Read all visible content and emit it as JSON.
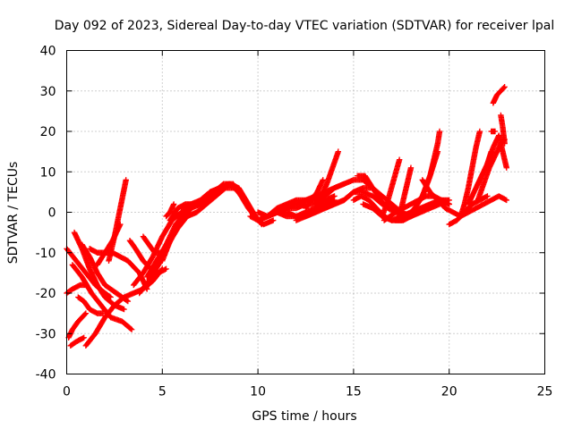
{
  "chart_data": {
    "type": "scatter",
    "title": "Day 092 of 2023, Sidereal Day-to-day VTEC variation (SDTVAR) for receiver lpal",
    "xlabel": "GPS time / hours",
    "ylabel": "SDTVAR / TECUs",
    "xlim": [
      0,
      25
    ],
    "ylim": [
      -40,
      40
    ],
    "xticks": [
      0,
      5,
      10,
      15,
      20,
      25
    ],
    "yticks": [
      -40,
      -30,
      -20,
      -10,
      0,
      10,
      20,
      30,
      40
    ],
    "xtick_labels": [
      "0",
      "5",
      "10",
      "15",
      "20",
      "25"
    ],
    "ytick_labels": [
      "-40",
      "-30",
      "-20",
      "-10",
      "0",
      "10",
      "20",
      "30",
      "40"
    ],
    "grid": true,
    "marker": "+",
    "color": "#ff0000",
    "series": [
      {
        "x": [
          0.0,
          0.5,
          1.0,
          1.5,
          2.0,
          2.3
        ],
        "y": [
          -9,
          -12,
          -15,
          -18,
          -20,
          -21
        ]
      },
      {
        "x": [
          0.3,
          0.8,
          1.3,
          1.8,
          2.3,
          2.9,
          3.4
        ],
        "y": [
          -13,
          -16,
          -20,
          -23,
          -26,
          -27,
          -29
        ]
      },
      {
        "x": [
          0.0,
          0.3,
          0.7,
          1.0
        ],
        "y": [
          -20,
          -19,
          -18,
          -18
        ]
      },
      {
        "x": [
          0.1,
          0.3,
          0.6,
          1.0
        ],
        "y": [
          -31,
          -29,
          -27,
          -25
        ]
      },
      {
        "x": [
          0.2,
          0.5,
          0.9
        ],
        "y": [
          -33,
          -32,
          -31
        ]
      },
      {
        "x": [
          0.6,
          0.9,
          1.2,
          1.6,
          1.9
        ],
        "y": [
          -21,
          -22,
          -24,
          -25,
          -25
        ]
      },
      {
        "x": [
          1.0,
          1.5,
          2.0,
          2.5,
          3.0,
          3.5,
          4.0,
          4.5,
          5.0
        ],
        "y": [
          -33,
          -30,
          -26,
          -23,
          -21,
          -20,
          -19,
          -17,
          -14
        ]
      },
      {
        "x": [
          0.4,
          0.8,
          1.2,
          1.6,
          2.0,
          2.5,
          3.0
        ],
        "y": [
          -5,
          -9,
          -14,
          -18,
          -21,
          -23,
          -24
        ]
      },
      {
        "x": [
          0.8,
          1.2,
          1.6,
          2.0,
          2.6,
          3.2
        ],
        "y": [
          -8,
          -11,
          -15,
          -18,
          -20,
          -22
        ]
      },
      {
        "x": [
          1.2,
          1.6,
          2.0,
          2.4,
          2.8,
          3.2,
          3.8,
          4.2
        ],
        "y": [
          -9,
          -10,
          -10,
          -10,
          -11,
          -12,
          -15,
          -19
        ]
      },
      {
        "x": [
          2.2,
          2.5,
          2.8,
          3.1
        ],
        "y": [
          -12,
          -6,
          1,
          8
        ]
      },
      {
        "x": [
          1.6,
          2.0,
          2.4,
          2.8
        ],
        "y": [
          -13,
          -10,
          -7,
          -3
        ]
      },
      {
        "x": [
          3.3,
          3.6,
          4.0,
          4.4,
          4.8,
          5.2
        ],
        "y": [
          -7,
          -9,
          -12,
          -14,
          -15,
          -14
        ]
      },
      {
        "x": [
          4.0,
          4.3,
          4.6,
          5.0
        ],
        "y": [
          -6,
          -8,
          -10,
          -10
        ]
      },
      {
        "x": [
          3.5,
          4.0,
          4.5,
          5.0,
          5.5,
          6.0,
          6.5,
          7.0,
          7.5,
          8.0,
          8.5,
          9.0,
          9.5,
          10.0,
          10.5,
          11.0
        ],
        "y": [
          -18,
          -15,
          -11,
          -6,
          -2,
          0,
          1,
          3,
          5,
          6,
          7,
          5,
          1,
          -2,
          -1,
          0
        ]
      },
      {
        "x": [
          3.8,
          4.3,
          4.8,
          5.3,
          5.8,
          6.3,
          6.8,
          7.3,
          7.8,
          8.3,
          8.8,
          9.3,
          9.8,
          10.3,
          10.8
        ],
        "y": [
          -20,
          -17,
          -13,
          -8,
          -4,
          -1,
          0,
          2,
          4,
          6,
          6,
          3,
          -1,
          -3,
          -2
        ]
      },
      {
        "x": [
          4.2,
          4.7,
          5.2,
          5.7,
          6.2,
          6.7,
          7.2,
          7.7,
          8.2,
          8.7,
          9.2,
          9.7,
          10.2
        ],
        "y": [
          -16,
          -12,
          -8,
          -3,
          0,
          2,
          3,
          5,
          7,
          7,
          4,
          0,
          -3
        ]
      },
      {
        "x": [
          5.0,
          5.5,
          6.0,
          6.5,
          7.0,
          7.5,
          8.0
        ],
        "y": [
          -12,
          -6,
          -2,
          1,
          2,
          3,
          5
        ]
      },
      {
        "x": [
          5.2,
          5.4,
          5.6
        ],
        "y": [
          -1,
          0,
          2
        ]
      },
      {
        "x": [
          5.4,
          5.8,
          6.2,
          6.6,
          7.0
        ],
        "y": [
          -2,
          1,
          2,
          2,
          2
        ]
      },
      {
        "x": [
          6.0,
          6.5,
          7.0,
          7.5,
          8.0,
          8.5,
          9.0,
          9.5,
          10.0,
          10.5,
          11.0,
          11.5,
          12.0,
          12.5,
          13.0,
          13.5,
          14.0
        ],
        "y": [
          1,
          2,
          3,
          5,
          6,
          7,
          6,
          2,
          -2,
          -1,
          0,
          1,
          1,
          2,
          2,
          3,
          4
        ]
      },
      {
        "x": [
          9.6,
          10.0,
          10.5,
          11.0,
          11.5,
          12.0,
          12.5,
          13.0,
          13.5,
          14.0,
          14.5
        ],
        "y": [
          -1,
          -2,
          -1,
          1,
          2,
          3,
          3,
          4,
          5,
          6,
          7
        ]
      },
      {
        "x": [
          10.5,
          11.0,
          11.5,
          12.0,
          12.5,
          13.0,
          13.5,
          14.0,
          14.5,
          15.0,
          15.5,
          16.0
        ],
        "y": [
          -1,
          0,
          1,
          2,
          3,
          3,
          4,
          6,
          7,
          8,
          8,
          6
        ]
      },
      {
        "x": [
          10.0,
          10.5,
          11.0,
          11.5,
          12.0,
          12.5,
          13.0,
          13.5,
          14.0
        ],
        "y": [
          0,
          -1,
          0,
          -1,
          -1,
          0,
          1,
          2,
          3
        ]
      },
      {
        "x": [
          11.0,
          11.5,
          12.0,
          12.5,
          13.0,
          13.5,
          14.0,
          14.5,
          15.0,
          15.5,
          16.0,
          16.5,
          17.0,
          17.5
        ],
        "y": [
          0,
          0,
          -1,
          -1,
          0,
          1,
          2,
          3,
          5,
          5,
          4,
          2,
          1,
          0
        ]
      },
      {
        "x": [
          12.0,
          12.5,
          13.0,
          13.5,
          14.0,
          14.5,
          15.0,
          15.5,
          16.0,
          16.5,
          17.0,
          17.5,
          18.0
        ],
        "y": [
          -2,
          -1,
          0,
          1,
          2,
          3,
          5,
          6,
          6,
          4,
          2,
          0,
          -1
        ]
      },
      {
        "x": [
          13.0,
          13.3,
          13.6,
          13.9,
          14.2
        ],
        "y": [
          2,
          4,
          7,
          11,
          15
        ]
      },
      {
        "x": [
          12.5,
          12.8,
          13.1,
          13.4
        ],
        "y": [
          1,
          3,
          5,
          8
        ]
      },
      {
        "x": [
          15.0,
          15.4,
          15.8,
          16.2,
          16.6,
          17.0,
          17.5,
          18.0,
          18.5,
          19.0,
          19.5
        ],
        "y": [
          3,
          4,
          3,
          1,
          -1,
          -2,
          -2,
          -1,
          0,
          1,
          2
        ]
      },
      {
        "x": [
          15.2,
          15.6,
          16.0,
          16.4,
          16.8,
          17.2,
          17.6
        ],
        "y": [
          9,
          9,
          6,
          3,
          1,
          0,
          0
        ]
      },
      {
        "x": [
          15.5,
          16.0,
          16.5,
          17.0,
          17.5,
          18.0,
          18.5,
          19.0,
          19.5,
          20.0
        ],
        "y": [
          2,
          1,
          -1,
          -2,
          -1,
          0,
          1,
          2,
          3,
          2
        ]
      },
      {
        "x": [
          16.5,
          16.8,
          17.1,
          17.4
        ],
        "y": [
          -1,
          3,
          8,
          13
        ]
      },
      {
        "x": [
          16.6,
          16.9,
          17.2,
          17.6,
          18.0,
          18.4,
          18.8,
          19.2,
          19.6,
          20.0
        ],
        "y": [
          -2,
          -1,
          0,
          1,
          2,
          3,
          4,
          4,
          3,
          2
        ]
      },
      {
        "x": [
          17.4,
          17.6,
          17.8,
          18.0
        ],
        "y": [
          -1,
          3,
          7,
          11
        ]
      },
      {
        "x": [
          17.8,
          18.2,
          18.6,
          19.0,
          19.4
        ],
        "y": [
          -1,
          1,
          4,
          9,
          15
        ]
      },
      {
        "x": [
          18.2,
          18.6,
          19.0,
          19.2,
          19.4,
          19.5
        ],
        "y": [
          1,
          4,
          9,
          13,
          17,
          20
        ]
      },
      {
        "x": [
          17.2,
          17.6,
          18.0,
          18.4,
          18.8,
          19.2,
          19.6,
          20.0
        ],
        "y": [
          -2,
          -2,
          -1,
          0,
          1,
          2,
          3,
          3
        ]
      },
      {
        "x": [
          18.6,
          19.0,
          19.4,
          19.8,
          20.2,
          20.6,
          21.0,
          21.4,
          21.8,
          22.2,
          22.6,
          23.0
        ],
        "y": [
          8,
          5,
          3,
          1,
          0,
          -1,
          0,
          1,
          2,
          3,
          4,
          3
        ]
      },
      {
        "x": [
          20.0,
          20.4,
          20.8,
          21.2,
          21.6,
          22.0
        ],
        "y": [
          -3,
          -2,
          0,
          2,
          3,
          4
        ]
      },
      {
        "x": [
          20.6,
          20.8,
          21.0,
          21.2,
          21.4,
          21.6
        ],
        "y": [
          -1,
          2,
          6,
          11,
          16,
          20
        ]
      },
      {
        "x": [
          21.0,
          21.2,
          21.4,
          21.6,
          21.8,
          22.0,
          22.2
        ],
        "y": [
          2,
          4,
          6,
          8,
          10,
          12,
          15
        ]
      },
      {
        "x": [
          21.5,
          21.8,
          22.1,
          22.4,
          22.7,
          22.9
        ],
        "y": [
          3,
          7,
          11,
          14,
          17,
          18
        ]
      },
      {
        "x": [
          22.0,
          22.3,
          22.6,
          22.8,
          23.0
        ],
        "y": [
          12,
          16,
          19,
          15,
          11
        ]
      },
      {
        "x": [
          22.3,
          22.5,
          22.7,
          22.9
        ],
        "y": [
          27,
          29,
          30,
          31
        ]
      },
      {
        "x": [
          22.7,
          22.8,
          22.9
        ],
        "y": [
          24,
          21,
          17
        ]
      },
      {
        "x": [
          22.2,
          22.4
        ],
        "y": [
          20,
          20
        ]
      }
    ]
  }
}
